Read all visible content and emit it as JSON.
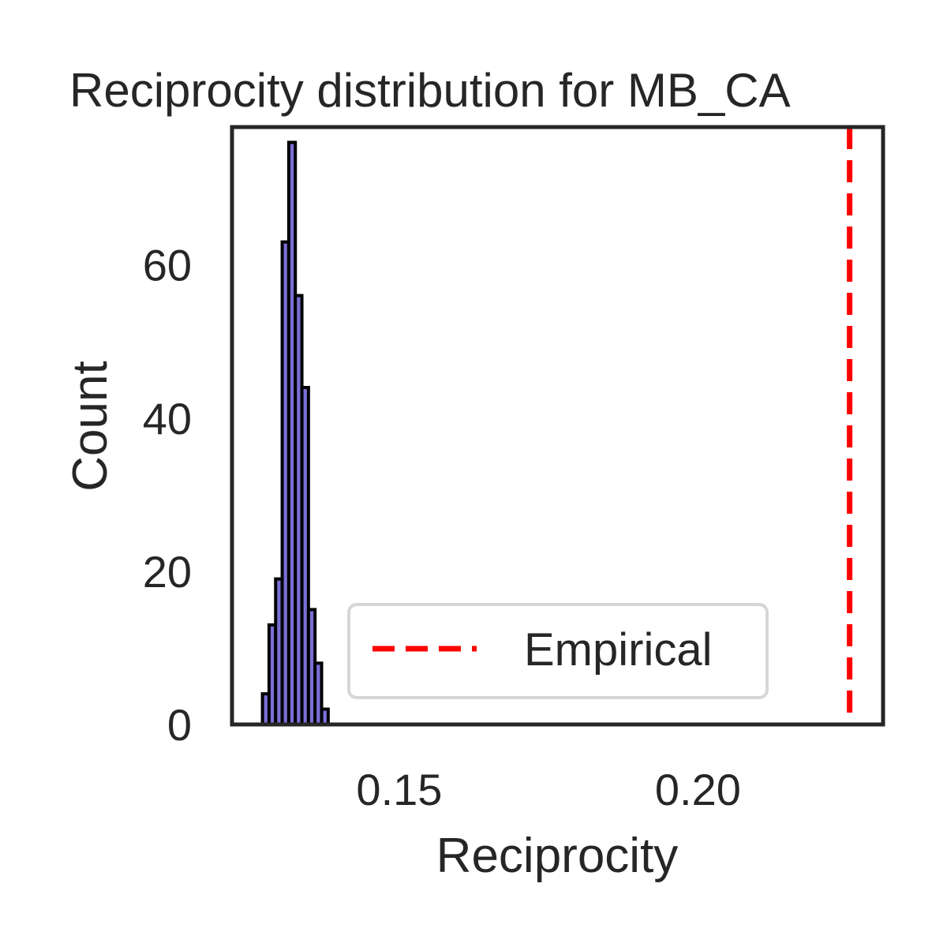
{
  "chart_data": {
    "type": "histogram",
    "title": "Reciprocity distribution for MB_CA",
    "xlabel": "Reciprocity",
    "ylabel": "Count",
    "xlim": [
      0.122,
      0.231
    ],
    "ylim": [
      0,
      78
    ],
    "x_ticks": [
      {
        "value": 0.15,
        "label": "0.15"
      },
      {
        "value": 0.2,
        "label": "0.20"
      }
    ],
    "y_ticks": [
      {
        "value": 0,
        "label": "0"
      },
      {
        "value": 20,
        "label": "20"
      },
      {
        "value": 40,
        "label": "40"
      },
      {
        "value": 60,
        "label": "60"
      }
    ],
    "histogram": {
      "bin_edges": [
        0.1271,
        0.1282,
        0.1293,
        0.1304,
        0.1315,
        0.1326,
        0.1337,
        0.1348,
        0.1359,
        0.137,
        0.1381
      ],
      "counts": [
        4,
        13,
        19,
        63,
        76,
        56,
        44,
        15,
        8,
        2
      ],
      "fill_color": "#7b6fd6",
      "edge_color": "#000000"
    },
    "reference_line": {
      "name": "Empirical",
      "x": 0.2254,
      "color": "#ff0000",
      "style": "dashed"
    },
    "legend": {
      "position": "bottom-right",
      "entries": [
        "Empirical"
      ]
    },
    "grid": false
  }
}
